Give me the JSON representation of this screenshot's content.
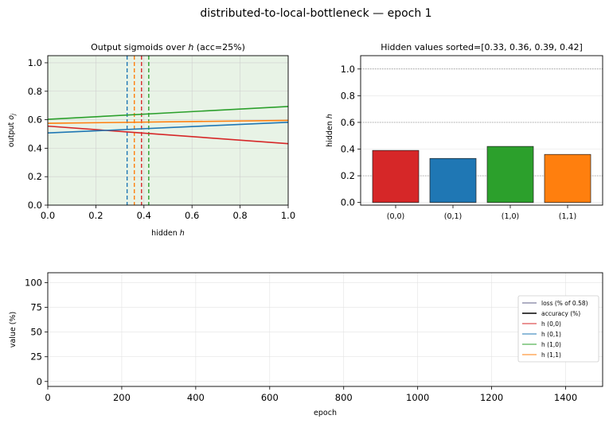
{
  "figure": {
    "suptitle": "distributed-to-local-bottleneck — epoch 1"
  },
  "colors": {
    "red": "#d62728",
    "blue": "#1f77b4",
    "green": "#2ca02c",
    "orange": "#ff7f0e",
    "loss": "#7f7f9f",
    "accuracy": "#000000",
    "sigmoid_bg": "#e8f3e6"
  },
  "chart_data": [
    {
      "type": "line",
      "title": "Output sigmoids over h  (acc=25%)",
      "title_parts": {
        "pre": "Output sigmoids over ",
        "var": "h",
        "post": "  (acc=25%)"
      },
      "xlabel": "hidden h",
      "ylabel": "output o",
      "ylabel_subscript": "j",
      "xlim": [
        0,
        1
      ],
      "ylim": [
        0,
        1.05
      ],
      "xticks": [
        "0.0",
        "0.2",
        "0.4",
        "0.6",
        "0.8",
        "1.0"
      ],
      "yticks": [
        "0.0",
        "0.2",
        "0.4",
        "0.6",
        "0.8",
        "1.0"
      ],
      "grid": true,
      "background": "light green",
      "series": [
        {
          "color": "red",
          "x": [
            0,
            1
          ],
          "y": [
            0.555,
            0.432
          ]
        },
        {
          "color": "blue",
          "x": [
            0,
            1
          ],
          "y": [
            0.507,
            0.582
          ]
        },
        {
          "color": "green",
          "x": [
            0,
            1
          ],
          "y": [
            0.603,
            0.693
          ]
        },
        {
          "color": "orange",
          "x": [
            0,
            1
          ],
          "y": [
            0.575,
            0.595
          ]
        }
      ],
      "vlines": [
        {
          "color": "blue",
          "x": 0.33,
          "style": "dashed"
        },
        {
          "color": "orange",
          "x": 0.36,
          "style": "dashed"
        },
        {
          "color": "red",
          "x": 0.39,
          "style": "dashed"
        },
        {
          "color": "green",
          "x": 0.42,
          "style": "dashed"
        }
      ]
    },
    {
      "type": "bar",
      "title": "Hidden values  sorted=[0.33, 0.36, 0.39, 0.42]",
      "xlabel": "",
      "ylabel": "hidden h",
      "categories": [
        "(0,0)",
        "(0,1)",
        "(1,0)",
        "(1,1)"
      ],
      "values": [
        0.39,
        0.33,
        0.42,
        0.36
      ],
      "bar_colors": [
        "red",
        "blue",
        "green",
        "orange"
      ],
      "ylim": [
        -0.02,
        1.1
      ],
      "yticks": [
        "0.0",
        "0.2",
        "0.4",
        "0.6",
        "0.8",
        "1.0"
      ],
      "reference_lines": [
        0.2,
        0.6,
        1.0
      ],
      "grid": true
    },
    {
      "type": "line",
      "title": "",
      "xlabel": "epoch",
      "ylabel": "value (%)",
      "xlim": [
        0,
        1500
      ],
      "ylim": [
        -5,
        110
      ],
      "xticks": [
        "0",
        "200",
        "400",
        "600",
        "800",
        "1000",
        "1200",
        "1400"
      ],
      "yticks": [
        "0",
        "25",
        "50",
        "75",
        "100"
      ],
      "grid": true,
      "legend_position": "center-right",
      "series": [
        {
          "name": "loss (% of 0.58)",
          "color": "loss",
          "values": []
        },
        {
          "name": "accuracy (%)",
          "color": "accuracy",
          "values": []
        },
        {
          "name": "h (0,0)",
          "color": "red",
          "values": []
        },
        {
          "name": "h (0,1)",
          "color": "blue",
          "values": []
        },
        {
          "name": "h (1,0)",
          "color": "green",
          "values": []
        },
        {
          "name": "h (1,1)",
          "color": "orange",
          "values": []
        }
      ]
    }
  ]
}
